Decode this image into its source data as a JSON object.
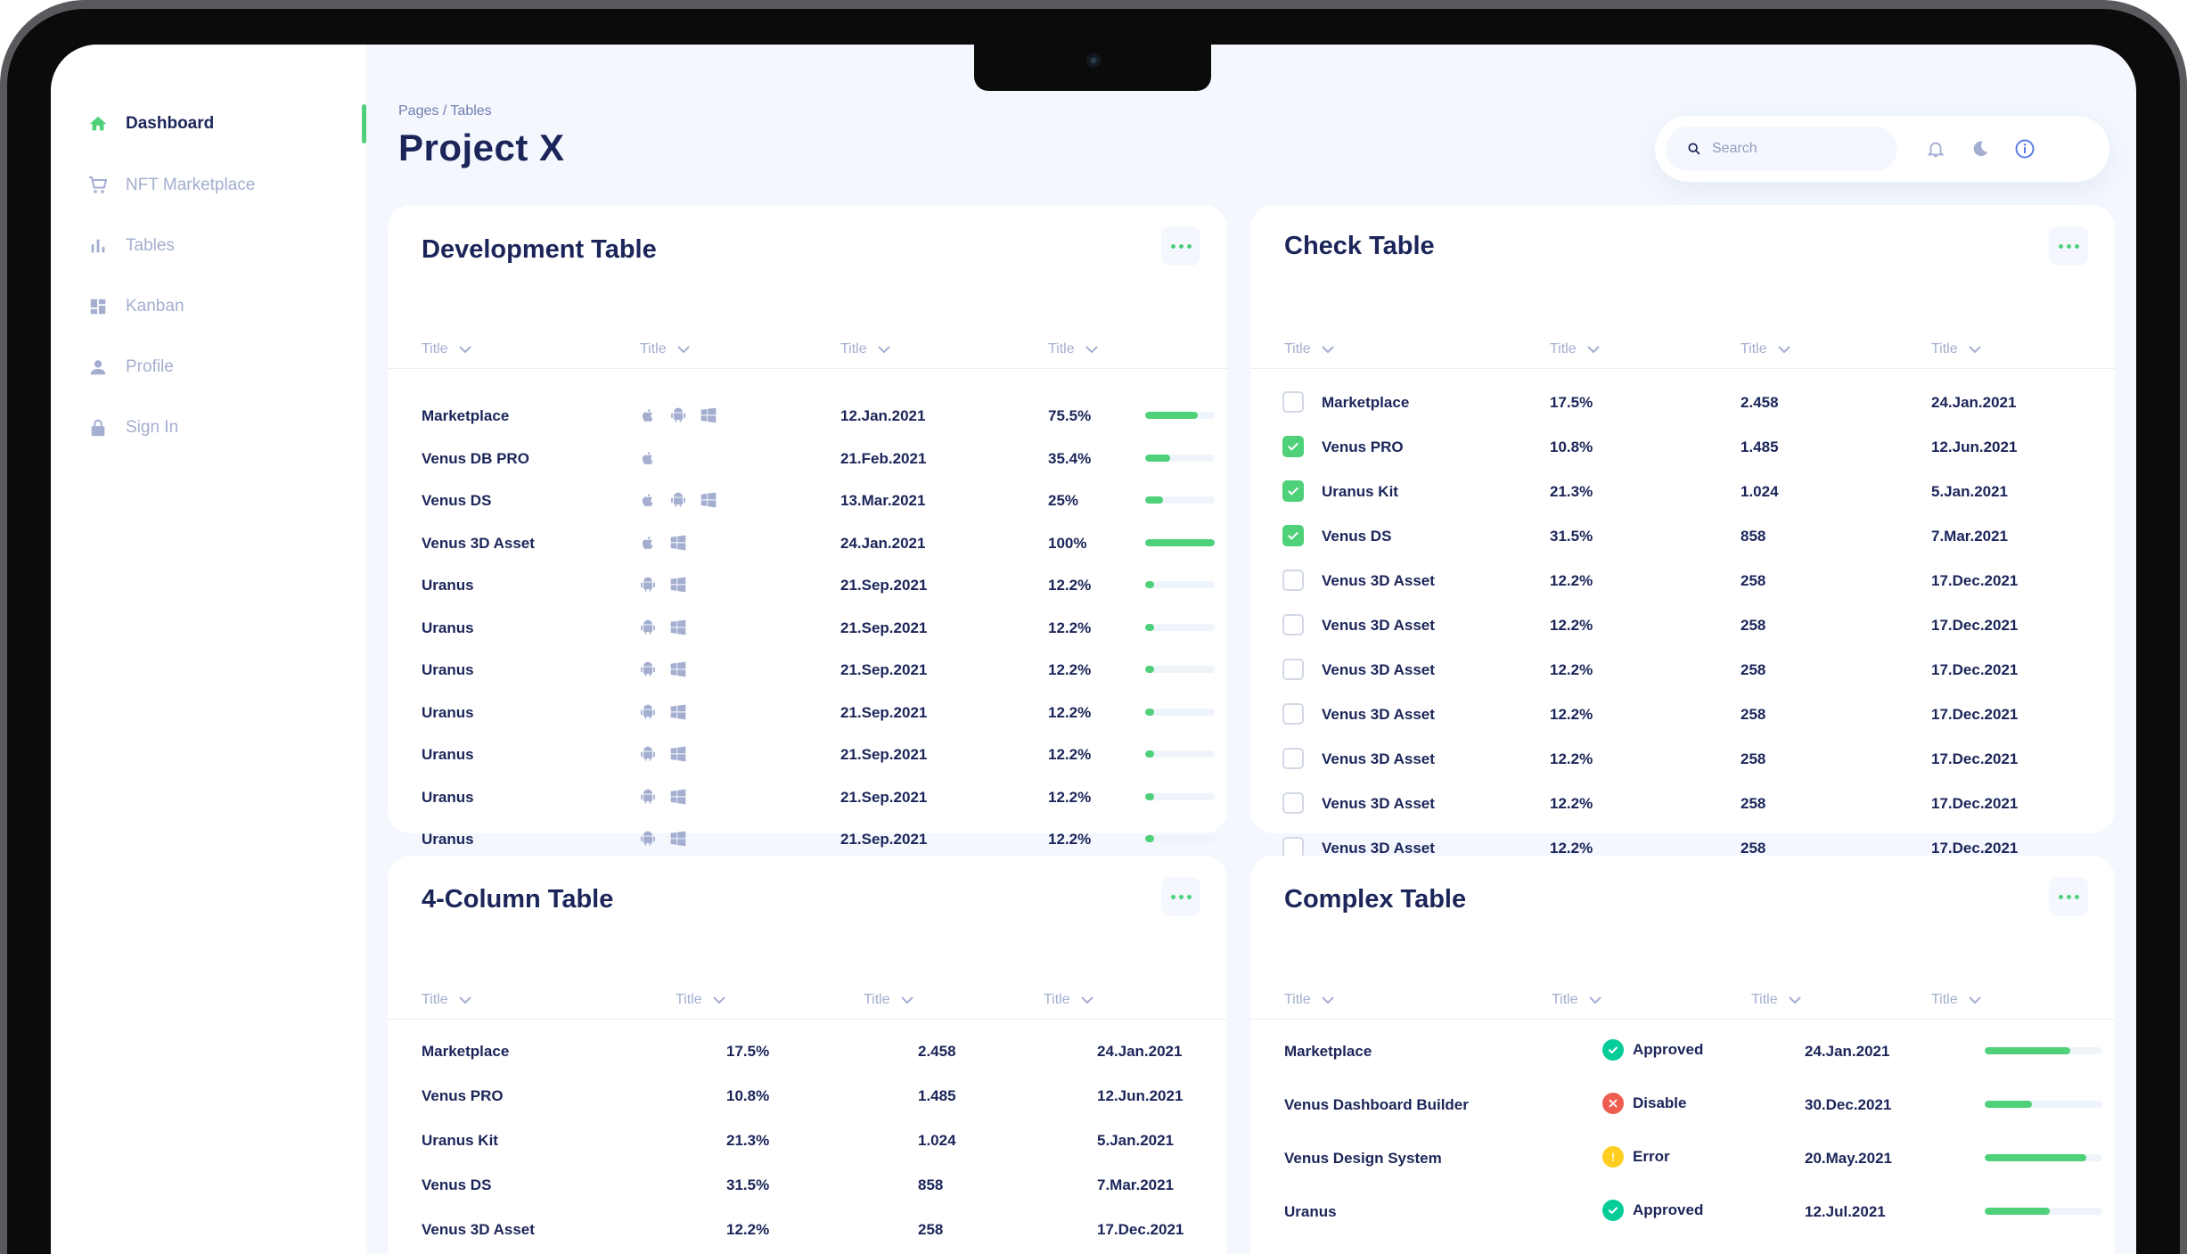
{
  "sidebar": {
    "items": [
      {
        "label": "Dashboard",
        "icon": "home-icon",
        "active": true
      },
      {
        "label": "NFT Marketplace",
        "icon": "cart-icon"
      },
      {
        "label": "Tables",
        "icon": "bar-chart-icon"
      },
      {
        "label": "Kanban",
        "icon": "grid-icon"
      },
      {
        "label": "Profile",
        "icon": "user-icon"
      },
      {
        "label": "Sign In",
        "icon": "lock-icon"
      }
    ]
  },
  "header": {
    "breadcrumb": "Pages / Tables",
    "title": "Project X",
    "search_placeholder": "Search"
  },
  "colors": {
    "accent": "#4fd17a",
    "text": "#1b2559",
    "muted": "#a3aed0",
    "error": "#ee5d50",
    "warning": "#ffce20"
  },
  "dev_table": {
    "title": "Development Table",
    "headers": [
      "Title",
      "Title",
      "Title",
      "Title"
    ],
    "rows": [
      {
        "name": "Marketplace",
        "platforms": [
          "apple",
          "android",
          "windows"
        ],
        "date": "12.Jan.2021",
        "progress": "75.5%",
        "value": 75.5
      },
      {
        "name": "Venus DB PRO",
        "platforms": [
          "apple"
        ],
        "date": "21.Feb.2021",
        "progress": "35.4%",
        "value": 35.4
      },
      {
        "name": "Venus DS",
        "platforms": [
          "apple",
          "android",
          "windows"
        ],
        "date": "13.Mar.2021",
        "progress": "25%",
        "value": 25
      },
      {
        "name": "Venus 3D Asset",
        "platforms": [
          "apple",
          "windows"
        ],
        "date": "24.Jan.2021",
        "progress": "100%",
        "value": 100
      },
      {
        "name": "Uranus",
        "platforms": [
          "android",
          "windows"
        ],
        "date": "21.Sep.2021",
        "progress": "12.2%",
        "value": 12.2
      },
      {
        "name": "Uranus",
        "platforms": [
          "android",
          "windows"
        ],
        "date": "21.Sep.2021",
        "progress": "12.2%",
        "value": 12.2
      },
      {
        "name": "Uranus",
        "platforms": [
          "android",
          "windows"
        ],
        "date": "21.Sep.2021",
        "progress": "12.2%",
        "value": 12.2
      },
      {
        "name": "Uranus",
        "platforms": [
          "android",
          "windows"
        ],
        "date": "21.Sep.2021",
        "progress": "12.2%",
        "value": 12.2
      },
      {
        "name": "Uranus",
        "platforms": [
          "android",
          "windows"
        ],
        "date": "21.Sep.2021",
        "progress": "12.2%",
        "value": 12.2
      },
      {
        "name": "Uranus",
        "platforms": [
          "android",
          "windows"
        ],
        "date": "21.Sep.2021",
        "progress": "12.2%",
        "value": 12.2
      },
      {
        "name": "Uranus",
        "platforms": [
          "android",
          "windows"
        ],
        "date": "21.Sep.2021",
        "progress": "12.2%",
        "value": 12.2
      }
    ]
  },
  "check_table": {
    "title": "Check Table",
    "headers": [
      "Title",
      "Title",
      "Title",
      "Title"
    ],
    "rows": [
      {
        "checked": false,
        "name": "Marketplace",
        "pct": "17.5%",
        "qty": "2.458",
        "date": "24.Jan.2021"
      },
      {
        "checked": true,
        "name": "Venus PRO",
        "pct": "10.8%",
        "qty": "1.485",
        "date": "12.Jun.2021"
      },
      {
        "checked": true,
        "name": "Uranus Kit",
        "pct": "21.3%",
        "qty": "1.024",
        "date": "5.Jan.2021"
      },
      {
        "checked": true,
        "name": "Venus DS",
        "pct": "31.5%",
        "qty": "858",
        "date": "7.Mar.2021"
      },
      {
        "checked": false,
        "name": "Venus 3D Asset",
        "pct": "12.2%",
        "qty": "258",
        "date": "17.Dec.2021"
      },
      {
        "checked": false,
        "name": "Venus 3D Asset",
        "pct": "12.2%",
        "qty": "258",
        "date": "17.Dec.2021"
      },
      {
        "checked": false,
        "name": "Venus 3D Asset",
        "pct": "12.2%",
        "qty": "258",
        "date": "17.Dec.2021"
      },
      {
        "checked": false,
        "name": "Venus 3D Asset",
        "pct": "12.2%",
        "qty": "258",
        "date": "17.Dec.2021"
      },
      {
        "checked": false,
        "name": "Venus 3D Asset",
        "pct": "12.2%",
        "qty": "258",
        "date": "17.Dec.2021"
      },
      {
        "checked": false,
        "name": "Venus 3D Asset",
        "pct": "12.2%",
        "qty": "258",
        "date": "17.Dec.2021"
      },
      {
        "checked": false,
        "name": "Venus 3D Asset",
        "pct": "12.2%",
        "qty": "258",
        "date": "17.Dec.2021"
      }
    ]
  },
  "four_col_table": {
    "title": "4-Column Table",
    "headers": [
      "Title",
      "Title",
      "Title",
      "Title"
    ],
    "rows": [
      {
        "name": "Marketplace",
        "pct": "17.5%",
        "qty": "2.458",
        "date": "24.Jan.2021"
      },
      {
        "name": "Venus PRO",
        "pct": "10.8%",
        "qty": "1.485",
        "date": "12.Jun.2021"
      },
      {
        "name": "Uranus Kit",
        "pct": "21.3%",
        "qty": "1.024",
        "date": "5.Jan.2021"
      },
      {
        "name": "Venus DS",
        "pct": "31.5%",
        "qty": "858",
        "date": "7.Mar.2021"
      },
      {
        "name": "Venus 3D Asset",
        "pct": "12.2%",
        "qty": "258",
        "date": "17.Dec.2021"
      }
    ]
  },
  "complex_table": {
    "title": "Complex Table",
    "headers": [
      "Title",
      "Title",
      "Title",
      "Title"
    ],
    "rows": [
      {
        "name": "Marketplace",
        "status": "Approved",
        "status_type": "approved",
        "date": "24.Jan.2021",
        "value": 73
      },
      {
        "name": "Venus Dashboard Builder",
        "status": "Disable",
        "status_type": "disable",
        "date": "30.Dec.2021",
        "value": 40
      },
      {
        "name": "Venus Design System",
        "status": "Error",
        "status_type": "error",
        "date": "20.May.2021",
        "value": 86
      },
      {
        "name": "Uranus",
        "status": "Approved",
        "status_type": "approved",
        "date": "12.Jul.2021",
        "value": 55
      }
    ]
  }
}
